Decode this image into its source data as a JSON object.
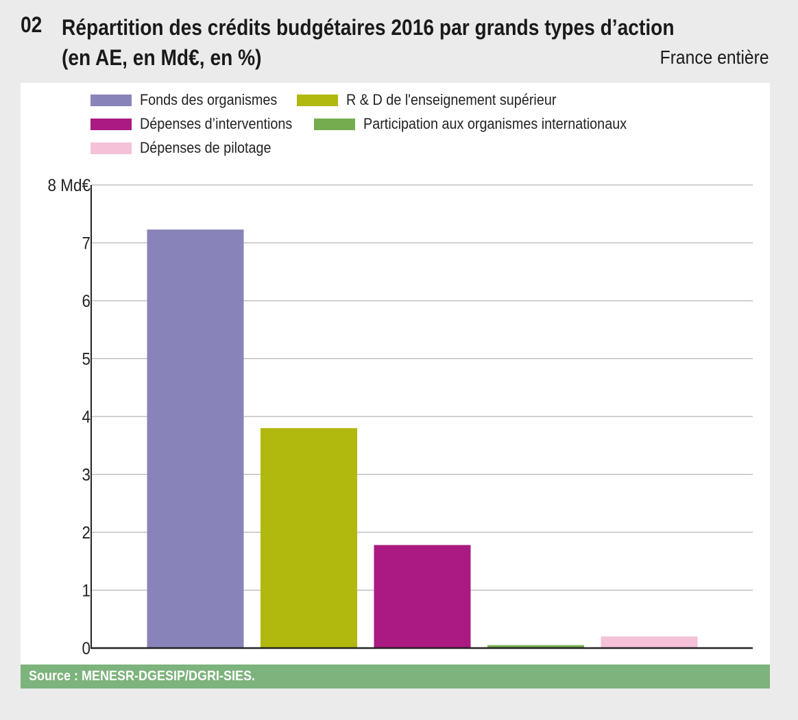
{
  "header": {
    "number": "02",
    "title_line1": "Répartition des crédits budgétaires 2016 par grands types d’action",
    "title_line2": "(en AE, en Md€, en %)",
    "region": "France entière"
  },
  "source": "Source : MENESR-DGESIP/DGRI-SIES.",
  "chart_data": {
    "type": "bar",
    "title": "Répartition des crédits budgétaires 2016 par grands types d’action (en AE, en Md€, en %)",
    "xlabel": "",
    "ylabel": "Md€",
    "ylim": [
      0,
      8
    ],
    "yticks": [
      "0",
      "1",
      "2",
      "3",
      "4",
      "5",
      "6",
      "7",
      "8 Md€"
    ],
    "ytick_values": [
      0,
      1,
      2,
      3,
      4,
      5,
      6,
      7,
      8
    ],
    "grid": true,
    "legend_position": "top",
    "categories": [
      "Fonds des organismes",
      "R & D de l'enseignement supérieur",
      "Dépenses d’interventions",
      "Participation aux organismes internationaux",
      "Dépenses de pilotage"
    ],
    "values": [
      7.23,
      3.8,
      1.78,
      0.05,
      0.2
    ],
    "colors": [
      "#8884b9",
      "#b1b80e",
      "#aa1a82",
      "#75ac50",
      "#f4c1d8"
    ]
  }
}
